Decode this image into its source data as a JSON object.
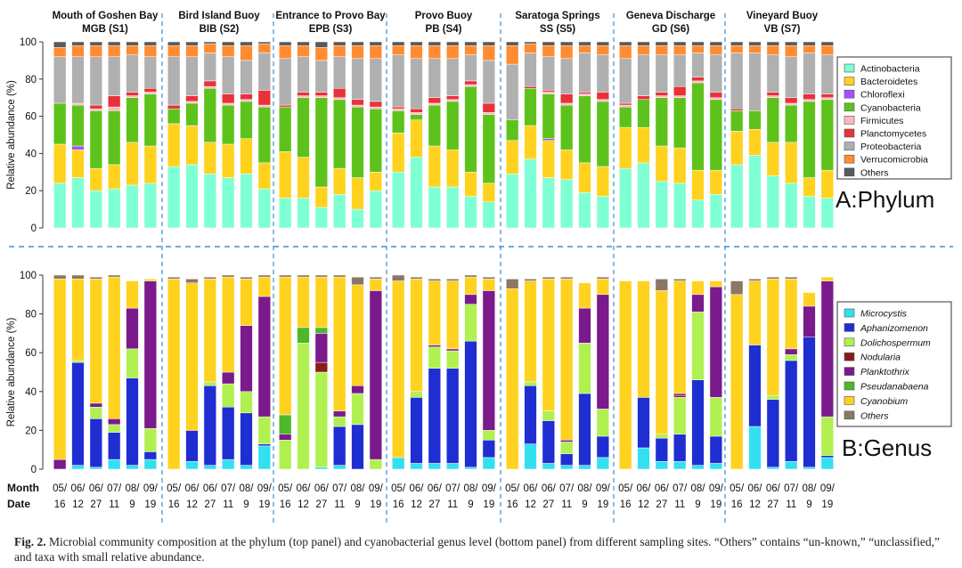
{
  "sites": [
    {
      "name": "Mouth of Goshen Bay",
      "code": "MGB (S1)"
    },
    {
      "name": "Bird Island Buoy",
      "code": "BIB (S2)"
    },
    {
      "name": "Entrance to Provo Bay",
      "code": "EPB (S3)"
    },
    {
      "name": "Provo Buoy",
      "code": "PB (S4)"
    },
    {
      "name": "Saratoga  Springs",
      "code": "SS (S5)"
    },
    {
      "name": "Geneva Discharge",
      "code": "GD (S6)"
    },
    {
      "name": "Vineyard Buoy",
      "code": "VB (S7)"
    }
  ],
  "months": [
    "05/",
    "06/",
    "06/",
    "07/",
    "08/",
    "09/"
  ],
  "dates": [
    "16",
    "12",
    "27",
    "11",
    "9",
    "19"
  ],
  "row_labels": {
    "month": "Month",
    "date": "Date"
  },
  "caption": {
    "label": "Fig. 2.",
    "text": "Microbial community composition at the phylum (top panel) and cyanobacterial genus level (bottom panel) from different sampling sites. “Others” contains “un-known,” “unclassified,” and taxa with small relative abundance."
  },
  "chart_data": [
    {
      "type": "bar",
      "stacked": true,
      "panel_label": "A:Phylum",
      "ylabel": "Relative abundance (%)",
      "ylim": [
        0,
        100
      ],
      "yticks": [
        0,
        20,
        40,
        60,
        80,
        100
      ],
      "legend": [
        {
          "name": "Actinobacteria",
          "color": "#7fffd4",
          "italic": false
        },
        {
          "name": "Bacteroidetes",
          "color": "#ffd21f",
          "italic": false
        },
        {
          "name": "Chloroflexi",
          "color": "#a64dff",
          "italic": false
        },
        {
          "name": "Cyanobacteria",
          "color": "#5ec21c",
          "italic": false
        },
        {
          "name": "Firmicutes",
          "color": "#ffb6c1",
          "italic": false
        },
        {
          "name": "Planctomycetes",
          "color": "#e8323a",
          "italic": false
        },
        {
          "name": "Proteobacteria",
          "color": "#b0b0b0",
          "italic": false
        },
        {
          "name": "Verrucomicrobia",
          "color": "#ff8c32",
          "italic": false
        },
        {
          "name": "Others",
          "color": "#595959",
          "italic": false
        }
      ],
      "sites": [
        [
          [
            24,
            21,
            0,
            22,
            0,
            0,
            25,
            5,
            3
          ],
          [
            27,
            15,
            2,
            22,
            1,
            0,
            25,
            6,
            2
          ],
          [
            20,
            12,
            0,
            31,
            1,
            2,
            26,
            6,
            2
          ],
          [
            21,
            13,
            0,
            29,
            2,
            6,
            21,
            6,
            2
          ],
          [
            23,
            23,
            0,
            24,
            1,
            2,
            20,
            5,
            2
          ],
          [
            24,
            20,
            0,
            28,
            1,
            2,
            17,
            6,
            2
          ]
        ],
        [
          [
            33,
            23,
            0,
            8,
            0,
            2,
            26,
            6,
            2
          ],
          [
            34,
            21,
            0,
            12,
            1,
            3,
            21,
            6,
            2
          ],
          [
            29,
            17,
            0,
            29,
            1,
            3,
            15,
            5,
            1
          ],
          [
            27,
            18,
            0,
            21,
            1,
            5,
            20,
            6,
            2
          ],
          [
            29,
            19,
            0,
            20,
            1,
            3,
            18,
            8,
            2
          ],
          [
            21,
            14,
            0,
            30,
            1,
            8,
            20,
            5,
            1
          ]
        ],
        [
          [
            16,
            25,
            0,
            24,
            0,
            1,
            25,
            7,
            2
          ],
          [
            16,
            22,
            0,
            32,
            1,
            2,
            19,
            6,
            2
          ],
          [
            11,
            11,
            0,
            48,
            1,
            2,
            17,
            7,
            3
          ],
          [
            18,
            14,
            0,
            37,
            1,
            5,
            17,
            6,
            2
          ],
          [
            10,
            17,
            0,
            38,
            1,
            3,
            22,
            7,
            2
          ],
          [
            20,
            10,
            0,
            34,
            1,
            3,
            23,
            7,
            2
          ]
        ],
        [
          [
            30,
            21,
            0,
            12,
            1,
            1,
            28,
            5,
            2
          ],
          [
            38,
            20,
            0,
            3,
            1,
            2,
            27,
            7,
            2
          ],
          [
            22,
            22,
            0,
            22,
            1,
            3,
            21,
            7,
            2
          ],
          [
            22,
            20,
            0,
            26,
            1,
            2,
            20,
            7,
            2
          ],
          [
            17,
            13,
            0,
            46,
            1,
            2,
            14,
            5,
            2
          ],
          [
            14,
            10,
            0,
            37,
            1,
            5,
            23,
            8,
            2
          ]
        ],
        [
          [
            29,
            18,
            0,
            11,
            0,
            0,
            30,
            10,
            2
          ],
          [
            37,
            18,
            0,
            20,
            0,
            1,
            18,
            5,
            1
          ],
          [
            27,
            20,
            1,
            24,
            1,
            1,
            18,
            6,
            2
          ],
          [
            26,
            16,
            0,
            24,
            1,
            5,
            19,
            7,
            2
          ],
          [
            19,
            16,
            0,
            36,
            1,
            1,
            21,
            4,
            2
          ],
          [
            17,
            16,
            0,
            35,
            1,
            4,
            20,
            5,
            2
          ]
        ],
        [
          [
            32,
            22,
            0,
            11,
            1,
            1,
            24,
            7,
            2
          ],
          [
            35,
            19,
            0,
            15,
            0,
            2,
            22,
            5,
            2
          ],
          [
            25,
            19,
            0,
            26,
            1,
            2,
            20,
            5,
            2
          ],
          [
            24,
            19,
            0,
            27,
            1,
            5,
            17,
            5,
            2
          ],
          [
            15,
            16,
            0,
            47,
            1,
            2,
            13,
            4,
            2
          ],
          [
            18,
            13,
            0,
            38,
            1,
            3,
            20,
            5,
            2
          ]
        ],
        [
          [
            34,
            18,
            0,
            11,
            0,
            1,
            30,
            4,
            2
          ],
          [
            39,
            14,
            0,
            10,
            0,
            0,
            31,
            4,
            2
          ],
          [
            28,
            18,
            0,
            24,
            1,
            2,
            20,
            5,
            2
          ],
          [
            24,
            22,
            0,
            20,
            1,
            3,
            22,
            6,
            2
          ],
          [
            17,
            10,
            0,
            41,
            1,
            3,
            22,
            4,
            2
          ],
          [
            16,
            15,
            0,
            38,
            1,
            2,
            21,
            5,
            2
          ]
        ]
      ]
    },
    {
      "type": "bar",
      "stacked": true,
      "panel_label": "B:Genus",
      "ylabel": "Relative abundance (%)",
      "ylim": [
        0,
        100
      ],
      "yticks": [
        0,
        20,
        40,
        60,
        80,
        100
      ],
      "legend": [
        {
          "name": "Microcystis",
          "color": "#33e0f0",
          "italic": true
        },
        {
          "name": "Aphanizomenon",
          "color": "#1f2ed1",
          "italic": true
        },
        {
          "name": "Dolichospermum",
          "color": "#b0f050",
          "italic": true
        },
        {
          "name": "Nodularia",
          "color": "#8b1a1a",
          "italic": true
        },
        {
          "name": "Planktothrix",
          "color": "#7a1a8c",
          "italic": true
        },
        {
          "name": "Pseudanabaena",
          "color": "#4cb82a",
          "italic": true
        },
        {
          "name": "Cyanobium",
          "color": "#ffd21f",
          "italic": true
        },
        {
          "name": "Others",
          "color": "#8b7765",
          "italic": true
        }
      ],
      "sites": [
        [
          [
            0,
            0,
            0,
            0,
            5,
            0,
            93,
            2
          ],
          [
            2,
            53,
            1,
            0,
            0,
            0,
            42,
            2
          ],
          [
            1,
            25,
            6,
            0,
            2,
            0,
            64,
            1
          ],
          [
            5,
            14,
            4,
            0,
            3,
            0,
            73,
            1
          ],
          [
            2,
            45,
            15,
            0,
            21,
            0,
            14,
            0
          ],
          [
            5,
            4,
            12,
            0,
            76,
            0,
            1,
            0
          ]
        ],
        [
          [
            0,
            0,
            0,
            0,
            0,
            0,
            98,
            1
          ],
          [
            4,
            16,
            0,
            0,
            0,
            0,
            76,
            2
          ],
          [
            2,
            41,
            2,
            0,
            0,
            0,
            53,
            1
          ],
          [
            5,
            27,
            12,
            0,
            6,
            0,
            49,
            1
          ],
          [
            2,
            27,
            11,
            0,
            34,
            0,
            24,
            1
          ],
          [
            12,
            1,
            14,
            0,
            62,
            0,
            10,
            1
          ]
        ],
        [
          [
            0,
            0,
            15,
            0,
            3,
            10,
            71,
            1
          ],
          [
            0,
            0,
            65,
            0,
            0,
            8,
            26,
            1
          ],
          [
            1,
            0,
            49,
            5,
            15,
            3,
            26,
            1
          ],
          [
            2,
            20,
            5,
            0,
            3,
            0,
            69,
            1
          ],
          [
            0,
            23,
            16,
            0,
            4,
            0,
            52,
            4
          ],
          [
            0,
            0,
            5,
            0,
            87,
            0,
            6,
            1
          ]
        ],
        [
          [
            6,
            0,
            0,
            0,
            0,
            0,
            91,
            3
          ],
          [
            3,
            34,
            3,
            0,
            0,
            0,
            58,
            1
          ],
          [
            3,
            49,
            11,
            0,
            1,
            0,
            33,
            1
          ],
          [
            3,
            49,
            9,
            0,
            1,
            0,
            35,
            1
          ],
          [
            1,
            65,
            19,
            0,
            5,
            0,
            9,
            1
          ],
          [
            6,
            9,
            5,
            0,
            72,
            0,
            6,
            1
          ]
        ],
        [
          [
            0,
            0,
            0,
            0,
            0,
            0,
            93,
            5
          ],
          [
            13,
            30,
            2,
            0,
            0,
            0,
            52,
            1
          ],
          [
            3,
            22,
            5,
            0,
            0,
            0,
            68,
            1
          ],
          [
            2,
            6,
            6,
            0,
            1,
            0,
            83,
            1
          ],
          [
            2,
            37,
            26,
            0,
            18,
            0,
            13,
            0
          ],
          [
            6,
            11,
            14,
            0,
            59,
            0,
            8,
            1
          ]
        ],
        [
          [
            0,
            0,
            0,
            0,
            0,
            0,
            97,
            0
          ],
          [
            11,
            26,
            0,
            0,
            0,
            0,
            60,
            0
          ],
          [
            4,
            12,
            2,
            0,
            0,
            0,
            74,
            6
          ],
          [
            4,
            14,
            19,
            1,
            1,
            0,
            58,
            1
          ],
          [
            2,
            44,
            35,
            0,
            9,
            0,
            7,
            0
          ],
          [
            3,
            14,
            20,
            0,
            57,
            0,
            3,
            0
          ]
        ],
        [
          [
            0,
            0,
            0,
            0,
            0,
            0,
            90,
            7
          ],
          [
            22,
            42,
            0,
            0,
            0,
            0,
            33,
            1
          ],
          [
            1,
            35,
            2,
            0,
            0,
            0,
            60,
            1
          ],
          [
            4,
            52,
            3,
            0,
            3,
            0,
            36,
            1
          ],
          [
            1,
            67,
            0,
            0,
            16,
            0,
            7,
            0
          ],
          [
            6,
            1,
            20,
            0,
            70,
            0,
            2,
            0
          ]
        ]
      ]
    }
  ]
}
